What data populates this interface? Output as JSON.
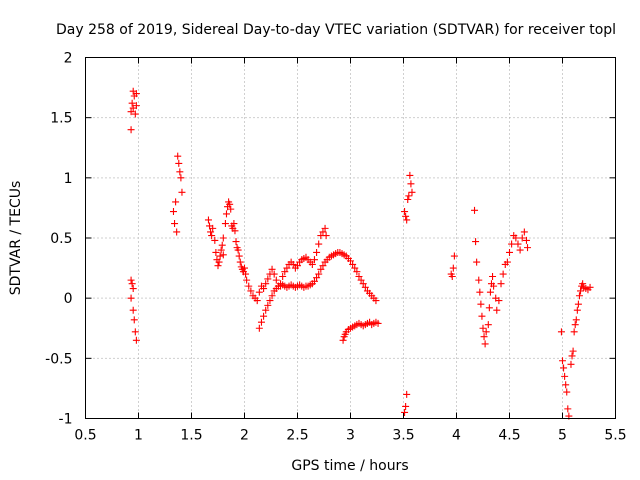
{
  "chart_data": {
    "type": "scatter",
    "title": "Day 258 of 2019, Sidereal Day-to-day VTEC variation (SDTVAR) for receiver topl",
    "xlabel": "GPS time / hours",
    "ylabel": "SDTVAR / TECUs",
    "xlim": [
      0.5,
      5.5
    ],
    "ylim": [
      -1,
      2
    ],
    "x_ticks": [
      "0.5",
      "1",
      "1.5",
      "2",
      "2.5",
      "3",
      "3.5",
      "4",
      "4.5",
      "5",
      "5.5"
    ],
    "y_ticks": [
      "-1",
      "-0.5",
      "0",
      "0.5",
      "1",
      "1.5",
      "2"
    ],
    "grid": true,
    "marker": "plus",
    "series": [
      {
        "name": "SDTVAR",
        "color": "#ff0000",
        "points": [
          [
            0.93,
            1.4
          ],
          [
            0.93,
            1.55
          ],
          [
            0.94,
            1.62
          ],
          [
            0.95,
            1.58
          ],
          [
            0.96,
            1.68
          ],
          [
            0.95,
            1.72
          ],
          [
            0.97,
            1.53
          ],
          [
            0.98,
            1.6
          ],
          [
            0.98,
            1.7
          ],
          [
            0.93,
            0.0
          ],
          [
            0.93,
            0.15
          ],
          [
            0.94,
            0.12
          ],
          [
            0.95,
            0.08
          ],
          [
            0.95,
            -0.1
          ],
          [
            0.96,
            -0.18
          ],
          [
            0.97,
            -0.28
          ],
          [
            0.98,
            -0.35
          ],
          [
            1.33,
            0.72
          ],
          [
            1.34,
            0.62
          ],
          [
            1.35,
            0.8
          ],
          [
            1.36,
            0.55
          ],
          [
            1.37,
            1.18
          ],
          [
            1.38,
            1.12
          ],
          [
            1.39,
            1.05
          ],
          [
            1.4,
            1.0
          ],
          [
            1.41,
            0.88
          ],
          [
            1.66,
            0.65
          ],
          [
            1.67,
            0.6
          ],
          [
            1.68,
            0.55
          ],
          [
            1.69,
            0.52
          ],
          [
            1.7,
            0.58
          ],
          [
            1.72,
            0.48
          ],
          [
            1.73,
            0.38
          ],
          [
            1.74,
            0.32
          ],
          [
            1.75,
            0.27
          ],
          [
            1.76,
            0.3
          ],
          [
            1.77,
            0.35
          ],
          [
            1.78,
            0.4
          ],
          [
            1.79,
            0.44
          ],
          [
            1.8,
            0.5
          ],
          [
            1.8,
            0.36
          ],
          [
            1.82,
            0.62
          ],
          [
            1.83,
            0.7
          ],
          [
            1.84,
            0.76
          ],
          [
            1.85,
            0.8
          ],
          [
            1.86,
            0.78
          ],
          [
            1.87,
            0.74
          ],
          [
            1.88,
            0.6
          ],
          [
            1.89,
            0.58
          ],
          [
            1.9,
            0.62
          ],
          [
            1.91,
            0.56
          ],
          [
            1.92,
            0.47
          ],
          [
            1.93,
            0.42
          ],
          [
            1.94,
            0.4
          ],
          [
            1.95,
            0.35
          ],
          [
            1.96,
            0.3
          ],
          [
            1.97,
            0.26
          ],
          [
            1.98,
            0.24
          ],
          [
            1.99,
            0.22
          ],
          [
            2.0,
            0.25
          ],
          [
            2.01,
            0.2
          ],
          [
            2.02,
            0.15
          ],
          [
            2.04,
            0.1
          ],
          [
            2.06,
            0.06
          ],
          [
            2.08,
            0.02
          ],
          [
            2.1,
            0.0
          ],
          [
            2.12,
            -0.02
          ],
          [
            2.14,
            0.05
          ],
          [
            2.16,
            0.1
          ],
          [
            2.18,
            0.08
          ],
          [
            2.2,
            0.12
          ],
          [
            2.22,
            0.16
          ],
          [
            2.24,
            0.2
          ],
          [
            2.26,
            0.24
          ],
          [
            2.28,
            0.2
          ],
          [
            2.3,
            0.15
          ],
          [
            2.32,
            0.1
          ],
          [
            2.34,
            0.12
          ],
          [
            2.36,
            0.18
          ],
          [
            2.38,
            0.22
          ],
          [
            2.4,
            0.25
          ],
          [
            2.42,
            0.28
          ],
          [
            2.44,
            0.3
          ],
          [
            2.46,
            0.28
          ],
          [
            2.48,
            0.25
          ],
          [
            2.5,
            0.27
          ],
          [
            2.52,
            0.3
          ],
          [
            2.54,
            0.32
          ],
          [
            2.56,
            0.33
          ],
          [
            2.58,
            0.34
          ],
          [
            2.6,
            0.32
          ],
          [
            2.62,
            0.3
          ],
          [
            2.64,
            0.28
          ],
          [
            2.66,
            0.32
          ],
          [
            2.68,
            0.38
          ],
          [
            2.7,
            0.45
          ],
          [
            2.72,
            0.52
          ],
          [
            2.74,
            0.55
          ],
          [
            2.76,
            0.58
          ],
          [
            2.77,
            0.52
          ],
          [
            2.14,
            -0.25
          ],
          [
            2.16,
            -0.2
          ],
          [
            2.18,
            -0.15
          ],
          [
            2.2,
            -0.1
          ],
          [
            2.22,
            -0.06
          ],
          [
            2.24,
            -0.02
          ],
          [
            2.26,
            0.02
          ],
          [
            2.28,
            0.06
          ],
          [
            2.3,
            0.08
          ],
          [
            2.32,
            0.1
          ],
          [
            2.34,
            0.1
          ],
          [
            2.36,
            0.11
          ],
          [
            2.38,
            0.1
          ],
          [
            2.4,
            0.09
          ],
          [
            2.42,
            0.1
          ],
          [
            2.44,
            0.11
          ],
          [
            2.46,
            0.1
          ],
          [
            2.48,
            0.09
          ],
          [
            2.5,
            0.1
          ],
          [
            2.52,
            0.11
          ],
          [
            2.54,
            0.1
          ],
          [
            2.56,
            0.09
          ],
          [
            2.58,
            0.1
          ],
          [
            2.6,
            0.1
          ],
          [
            2.62,
            0.11
          ],
          [
            2.64,
            0.12
          ],
          [
            2.66,
            0.14
          ],
          [
            2.68,
            0.17
          ],
          [
            2.7,
            0.2
          ],
          [
            2.72,
            0.24
          ],
          [
            2.74,
            0.27
          ],
          [
            2.76,
            0.3
          ],
          [
            2.78,
            0.32
          ],
          [
            2.8,
            0.34
          ],
          [
            2.82,
            0.35
          ],
          [
            2.84,
            0.36
          ],
          [
            2.86,
            0.37
          ],
          [
            2.88,
            0.38
          ],
          [
            2.9,
            0.38
          ],
          [
            2.92,
            0.37
          ],
          [
            2.94,
            0.36
          ],
          [
            2.96,
            0.35
          ],
          [
            2.98,
            0.33
          ],
          [
            3.0,
            0.31
          ],
          [
            3.02,
            0.28
          ],
          [
            3.04,
            0.25
          ],
          [
            3.06,
            0.22
          ],
          [
            3.08,
            0.18
          ],
          [
            3.1,
            0.15
          ],
          [
            3.12,
            0.12
          ],
          [
            3.14,
            0.09
          ],
          [
            3.16,
            0.06
          ],
          [
            3.18,
            0.04
          ],
          [
            3.2,
            0.02
          ],
          [
            3.22,
            0.0
          ],
          [
            3.24,
            -0.02
          ],
          [
            2.93,
            -0.35
          ],
          [
            2.94,
            -0.32
          ],
          [
            2.95,
            -0.3
          ],
          [
            2.96,
            -0.28
          ],
          [
            2.98,
            -0.26
          ],
          [
            3.0,
            -0.25
          ],
          [
            3.02,
            -0.24
          ],
          [
            3.04,
            -0.23
          ],
          [
            3.06,
            -0.22
          ],
          [
            3.08,
            -0.21
          ],
          [
            3.1,
            -0.22
          ],
          [
            3.12,
            -0.23
          ],
          [
            3.14,
            -0.22
          ],
          [
            3.16,
            -0.21
          ],
          [
            3.18,
            -0.2
          ],
          [
            3.2,
            -0.22
          ],
          [
            3.22,
            -0.21
          ],
          [
            3.24,
            -0.2
          ],
          [
            3.26,
            -0.21
          ],
          [
            3.51,
            0.72
          ],
          [
            3.52,
            0.68
          ],
          [
            3.53,
            0.65
          ],
          [
            3.54,
            0.82
          ],
          [
            3.55,
            0.85
          ],
          [
            3.56,
            1.02
          ],
          [
            3.57,
            0.95
          ],
          [
            3.58,
            0.88
          ],
          [
            3.51,
            -0.95
          ],
          [
            3.52,
            -0.9
          ],
          [
            3.53,
            -0.8
          ],
          [
            3.95,
            0.2
          ],
          [
            3.96,
            0.18
          ],
          [
            3.97,
            0.25
          ],
          [
            3.98,
            0.35
          ],
          [
            4.17,
            0.73
          ],
          [
            4.18,
            0.47
          ],
          [
            4.19,
            0.3
          ],
          [
            4.21,
            0.15
          ],
          [
            4.22,
            0.05
          ],
          [
            4.23,
            -0.05
          ],
          [
            4.24,
            -0.15
          ],
          [
            4.25,
            -0.25
          ],
          [
            4.26,
            -0.32
          ],
          [
            4.27,
            -0.38
          ],
          [
            4.28,
            -0.28
          ],
          [
            4.3,
            -0.22
          ],
          [
            4.31,
            -0.08
          ],
          [
            4.32,
            0.05
          ],
          [
            4.33,
            0.12
          ],
          [
            4.34,
            0.18
          ],
          [
            4.35,
            0.1
          ],
          [
            4.37,
            0.0
          ],
          [
            4.38,
            -0.1
          ],
          [
            4.4,
            -0.02
          ],
          [
            4.42,
            0.12
          ],
          [
            4.44,
            0.2
          ],
          [
            4.46,
            0.28
          ],
          [
            4.48,
            0.3
          ],
          [
            4.5,
            0.38
          ],
          [
            4.52,
            0.45
          ],
          [
            4.54,
            0.52
          ],
          [
            4.56,
            0.5
          ],
          [
            4.58,
            0.45
          ],
          [
            4.6,
            0.4
          ],
          [
            4.62,
            0.5
          ],
          [
            4.64,
            0.55
          ],
          [
            4.66,
            0.48
          ],
          [
            4.67,
            0.42
          ],
          [
            4.99,
            -0.28
          ],
          [
            5.0,
            -0.52
          ],
          [
            5.01,
            -0.58
          ],
          [
            5.02,
            -0.65
          ],
          [
            5.03,
            -0.72
          ],
          [
            5.04,
            -0.78
          ],
          [
            5.05,
            -0.92
          ],
          [
            5.06,
            -0.98
          ],
          [
            5.08,
            -0.55
          ],
          [
            5.09,
            -0.48
          ],
          [
            5.1,
            -0.44
          ],
          [
            5.11,
            -0.28
          ],
          [
            5.12,
            -0.22
          ],
          [
            5.13,
            -0.18
          ],
          [
            5.14,
            -0.1
          ],
          [
            5.15,
            -0.05
          ],
          [
            5.16,
            0.02
          ],
          [
            5.17,
            0.06
          ],
          [
            5.18,
            0.1
          ],
          [
            5.19,
            0.12
          ],
          [
            5.2,
            0.09
          ],
          [
            5.22,
            0.08
          ],
          [
            5.24,
            0.07
          ],
          [
            5.26,
            0.09
          ]
        ]
      }
    ]
  }
}
